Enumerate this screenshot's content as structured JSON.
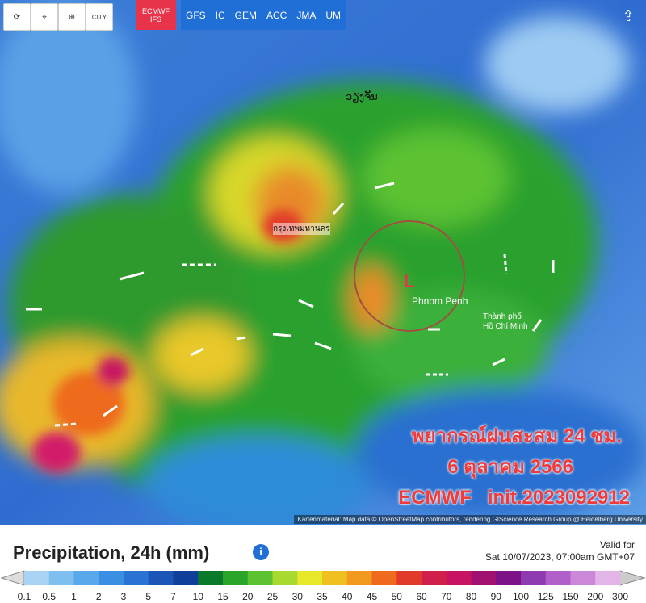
{
  "toolbar": {
    "city_button": "CITY",
    "models": [
      "ECMWF",
      "IFS",
      "GFS",
      "IC",
      "GEM",
      "ACC",
      "JMA",
      "UM"
    ]
  },
  "map": {
    "labels": {
      "vientiane": "ວຽງຈັນ",
      "bangkok": "กรุงเทพมหานคร",
      "low": "L",
      "phnom_penh": "Phnom Penh",
      "hcm_line1": "Thành phố",
      "hcm_line2": "Hồ Chí Minh"
    },
    "overlay": [
      "พยากรณ์ฝนสะสม 24 ชม.",
      "6 ตุลาคม 2566",
      "ECMWF   init.2023092912"
    ],
    "attribution": "Kartenmaterial: Map data © OpenStreetMap contributors, rendering GIScience Research Group @ Heidelberg University"
  },
  "legend": {
    "title": "Precipitation, 24h (mm)",
    "valid_label": "Valid for",
    "valid_time": "Sat 10/07/2023, 07:00am GMT+07",
    "labels": [
      "0.1",
      "0.5",
      "1",
      "2",
      "3",
      "5",
      "7",
      "10",
      "15",
      "20",
      "25",
      "30",
      "35",
      "40",
      "45",
      "50",
      "60",
      "70",
      "80",
      "90",
      "100",
      "125",
      "150",
      "200",
      "300"
    ],
    "colors": [
      "#a9d3f5",
      "#7fbff0",
      "#59a8ec",
      "#3a8fe2",
      "#2a73d2",
      "#1b55b5",
      "#0f3f98",
      "#0a7a2a",
      "#2aa52a",
      "#5cc232",
      "#a8d92e",
      "#e8e82a",
      "#f0c020",
      "#f29a1e",
      "#ee6a1c",
      "#e23a2a",
      "#d21e4a",
      "#c81262",
      "#a01070",
      "#7d1288",
      "#8e3ab0",
      "#b060c8",
      "#cc88d8",
      "#e2b4e8",
      "#f0dcf4"
    ]
  }
}
